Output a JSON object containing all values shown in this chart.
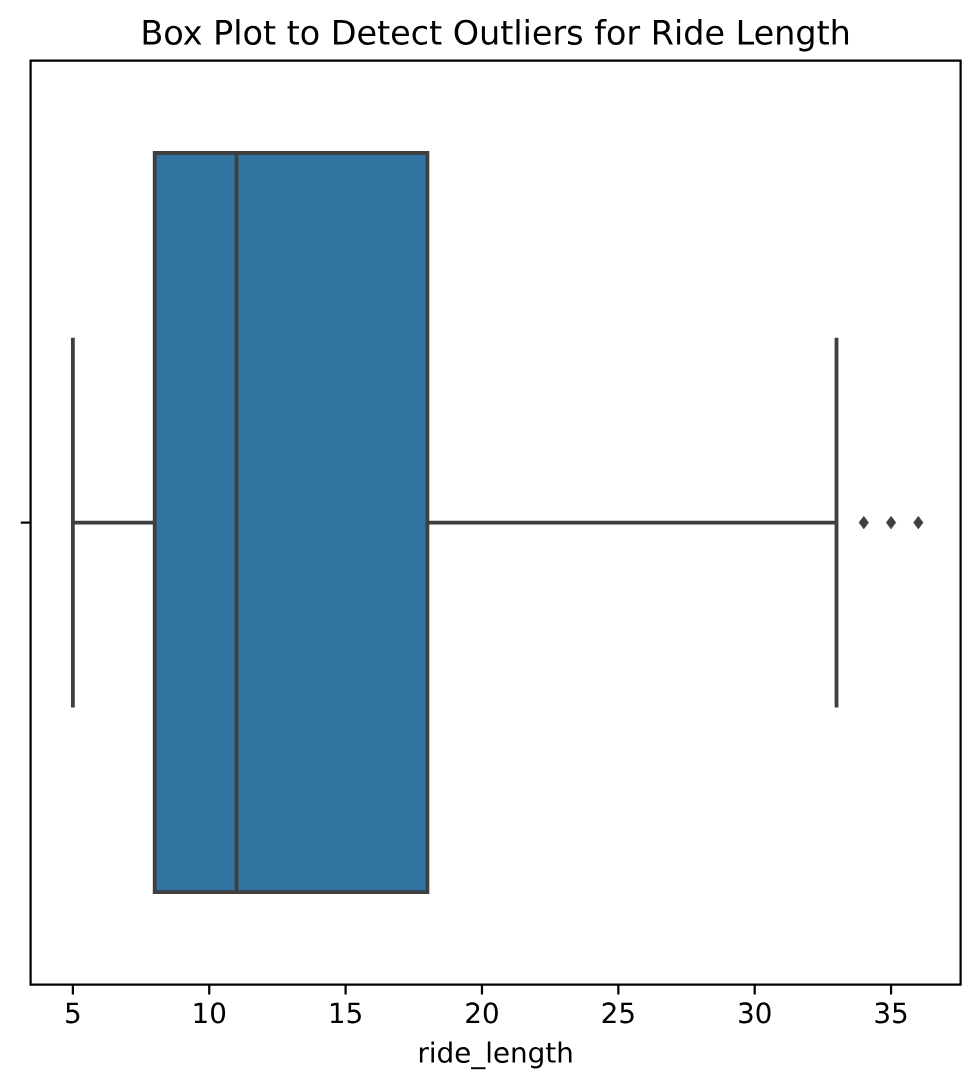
{
  "chart_data": {
    "type": "box",
    "title": "Box Plot to Detect Outliers for Ride Length",
    "xlabel": "ride_length",
    "orientation": "horizontal",
    "categories": [
      null
    ],
    "boxes": [
      {
        "low": 5,
        "q1": 8,
        "median": 11,
        "q3": 18,
        "high": 33,
        "outliers": [
          34,
          35,
          36
        ]
      }
    ],
    "color": "#3274a1",
    "marker": "diamond",
    "xlim": [
      3.45,
      37.55
    ],
    "xticks": [
      5,
      10,
      15,
      20,
      25,
      30,
      35
    ]
  }
}
